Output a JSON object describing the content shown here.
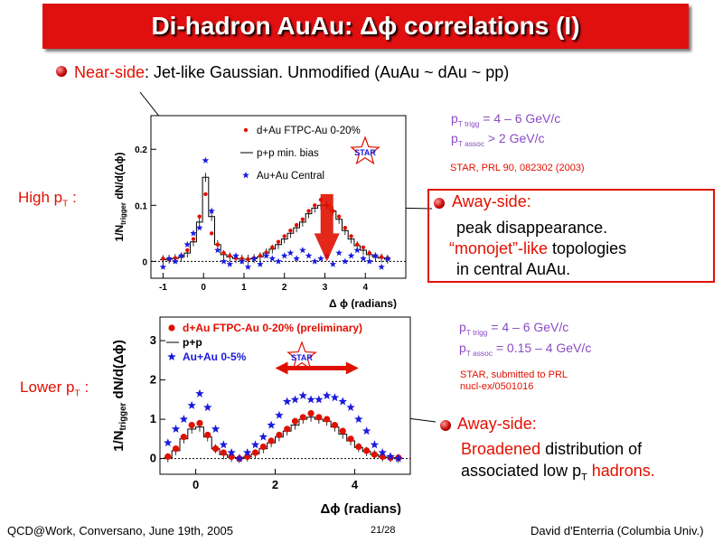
{
  "title": "Di-hadron AuAu: Δϕ correlations (I)",
  "near_side": {
    "label": "Near-side",
    "text": ":  Jet-like Gaussian. Unmodified (AuAu ~ dAu ~ pp)"
  },
  "high_pt": {
    "label": "High p",
    "sub": "T",
    "colon": " :"
  },
  "lower_pt": {
    "label": "Lower p",
    "sub": "T",
    "colon": " :"
  },
  "plot1": {
    "ptrig_p": "p",
    "ptrig_sub": "T trigg",
    "ptrig_val": " = 4 – 6 GeV/c",
    "passoc_p": "p",
    "passoc_sub": "T assoc",
    "passoc_val": " > 2 GeV/c",
    "reference": "STAR, PRL 90, 082302 (2003)",
    "legend": [
      "d+Au FTPC-Au 0-20%",
      "p+p min. bias",
      "Au+Au Central"
    ],
    "star_logo": "STAR",
    "ylabel": "1/N",
    "ylabel_sub": "trigger",
    "ylabel_rest": " dN/d(Δϕ)",
    "xlabel": "Δ ϕ (radians)",
    "xticks": [
      "-1",
      "0",
      "1",
      "2",
      "3",
      "4"
    ],
    "yticks": [
      "0",
      "0.1",
      "0.2"
    ]
  },
  "plot2": {
    "ptrig_p": "p",
    "ptrig_sub": "T trigg",
    "ptrig_val": " = 4 – 6 GeV/c",
    "passoc_p": "p",
    "passoc_sub": "T assoc",
    "passoc_val": " = 0.15 – 4 GeV/c",
    "reference_1": "STAR, submitted to PRL",
    "reference_2": "nucl-ex/0501016",
    "legend": [
      "d+Au FTPC-Au 0-20% (preliminary)",
      "p+p",
      "Au+Au 0-5%"
    ],
    "star_logo": "STAR",
    "ylabel": "1/N",
    "ylabel_sub": "trigger",
    "ylabel_rest": " dN/d(Δϕ)",
    "xlabel": "Δϕ (radians)",
    "xticks": [
      "0",
      "2",
      "4"
    ],
    "yticks": [
      "0",
      "1",
      "2",
      "3"
    ]
  },
  "away1": {
    "heading": "Away-side:",
    "line1": "peak disappearance.",
    "line2_red": "“monojet”-like",
    "line2_rest": " topologies",
    "line3": "in central AuAu."
  },
  "away2": {
    "heading": "Away-side:",
    "line1_red": "Broadened",
    "line1_rest": " distribution of",
    "line2_a": "associated low p",
    "line2_sub": "T",
    "line2_red": " hadrons."
  },
  "footer": {
    "left": "QCD@Work, Conversano, June 19th, 2005",
    "center": "21/28",
    "right": "David d'Enterria (Columbia Univ.)"
  },
  "chart_data": [
    {
      "type": "scatter",
      "title": "",
      "xlabel": "Δ ϕ (radians)",
      "ylabel": "1/N_trigger dN/d(Δϕ)",
      "xlim": [
        -1.3,
        5.0
      ],
      "ylim": [
        -0.03,
        0.26
      ],
      "x": [
        -1.0,
        -0.85,
        -0.7,
        -0.55,
        -0.4,
        -0.25,
        -0.1,
        0.05,
        0.2,
        0.35,
        0.5,
        0.65,
        0.8,
        0.95,
        1.1,
        1.25,
        1.4,
        1.55,
        1.7,
        1.85,
        2.0,
        2.15,
        2.3,
        2.45,
        2.6,
        2.75,
        2.9,
        3.05,
        3.2,
        3.35,
        3.5,
        3.65,
        3.8,
        3.95,
        4.1,
        4.25,
        4.4,
        4.55
      ],
      "series": [
        {
          "name": "d+Au FTPC-Au 0-20%",
          "values": [
            0.005,
            0.004,
            0.006,
            0.01,
            0.02,
            0.04,
            0.08,
            0.12,
            0.05,
            0.03,
            0.015,
            0.01,
            0.006,
            0.005,
            0.004,
            0.006,
            0.01,
            0.016,
            0.025,
            0.035,
            0.045,
            0.055,
            0.065,
            0.075,
            0.09,
            0.1,
            0.11,
            0.1,
            0.09,
            0.08,
            0.06,
            0.045,
            0.03,
            0.025,
            0.015,
            0.01,
            0.008,
            0.006
          ]
        },
        {
          "name": "p+p min. bias",
          "values": [
            0.003,
            0.004,
            0.005,
            0.008,
            0.015,
            0.035,
            0.07,
            0.15,
            0.08,
            0.03,
            0.012,
            0.008,
            0.005,
            0.004,
            0.004,
            0.005,
            0.008,
            0.015,
            0.022,
            0.03,
            0.04,
            0.05,
            0.06,
            0.07,
            0.085,
            0.095,
            0.1,
            0.1,
            0.09,
            0.075,
            0.055,
            0.04,
            0.028,
            0.02,
            0.012,
            0.008,
            0.006,
            0.004
          ]
        },
        {
          "name": "Au+Au Central",
          "values": [
            -0.01,
            0.005,
            0.0,
            0.01,
            0.03,
            0.05,
            0.06,
            0.18,
            0.09,
            0.02,
            0.0,
            -0.005,
            0.01,
            0.0,
            -0.01,
            0.005,
            -0.005,
            0.01,
            0.005,
            0.0,
            0.01,
            0.015,
            0.005,
            0.02,
            0.01,
            0.0,
            0.005,
            0.01,
            -0.005,
            0.015,
            0.0,
            0.01,
            0.02,
            0.005,
            0.0,
            0.01,
            -0.01,
            0.005
          ]
        }
      ]
    },
    {
      "type": "scatter",
      "title": "",
      "xlabel": "Δϕ (radians)",
      "ylabel": "1/N_trigger dN/d(Δϕ)",
      "xlim": [
        -0.9,
        5.4
      ],
      "ylim": [
        -0.4,
        3.6
      ],
      "x": [
        -0.7,
        -0.5,
        -0.3,
        -0.1,
        0.1,
        0.3,
        0.5,
        0.7,
        0.9,
        1.1,
        1.3,
        1.5,
        1.7,
        1.9,
        2.1,
        2.3,
        2.5,
        2.7,
        2.9,
        3.1,
        3.3,
        3.5,
        3.7,
        3.9,
        4.1,
        4.3,
        4.5,
        4.7,
        4.9,
        5.1
      ],
      "series": [
        {
          "name": "d+Au FTPC-Au 0-20% (preliminary)",
          "values": [
            0.05,
            0.25,
            0.55,
            0.85,
            0.9,
            0.6,
            0.25,
            0.15,
            0.05,
            0.0,
            0.05,
            0.15,
            0.3,
            0.45,
            0.6,
            0.75,
            0.95,
            1.05,
            1.15,
            1.05,
            1.0,
            0.85,
            0.7,
            0.5,
            0.3,
            0.2,
            0.1,
            0.05,
            0.02,
            0.02
          ]
        },
        {
          "name": "p+p",
          "values": [
            0.02,
            0.2,
            0.5,
            0.75,
            0.8,
            0.55,
            0.25,
            0.1,
            0.03,
            0.0,
            0.04,
            0.12,
            0.25,
            0.4,
            0.55,
            0.7,
            0.85,
            1.0,
            1.05,
            1.0,
            0.95,
            0.8,
            0.62,
            0.45,
            0.28,
            0.18,
            0.1,
            0.04,
            0.02,
            0.0
          ]
        },
        {
          "name": "Au+Au 0-5%",
          "values": [
            0.4,
            0.75,
            1.0,
            1.35,
            1.65,
            1.3,
            0.75,
            0.35,
            0.15,
            0.0,
            0.15,
            0.35,
            0.55,
            0.85,
            1.1,
            1.45,
            1.5,
            1.6,
            1.5,
            1.5,
            1.6,
            1.55,
            1.45,
            1.3,
            1.0,
            0.7,
            0.35,
            0.15,
            0.05,
            0.0
          ]
        }
      ]
    }
  ]
}
